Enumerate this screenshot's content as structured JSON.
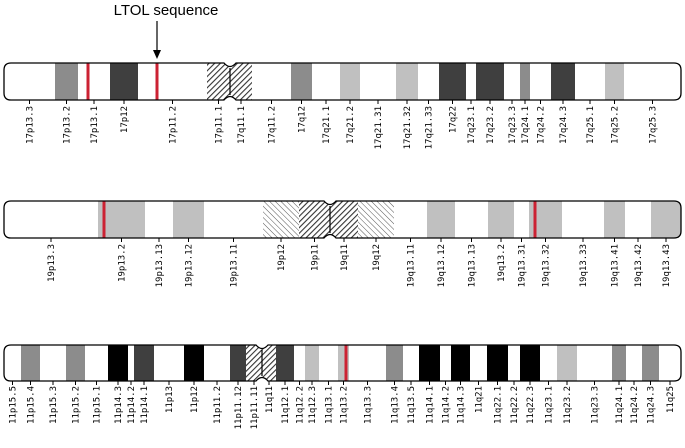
{
  "annotation": {
    "label": "LTOL sequence"
  },
  "colors": {
    "gneg": "#ffffff",
    "gpos25": "#c0c0c0",
    "gpos50": "#8c8c8c",
    "gpos75": "#3f3f3f",
    "gpos100": "#000000",
    "marker": "#cc2233",
    "outline": "#000000"
  },
  "chromosomes": [
    {
      "id": "chr17",
      "bands": [
        {
          "name": "17p13.3",
          "stain": "gneg"
        },
        {
          "name": "17p13.2",
          "stain": "gpos50"
        },
        {
          "name": "17p13.1",
          "stain": "gneg"
        },
        {
          "name": "17p12",
          "stain": "gpos75"
        },
        {
          "name": "17p11.2",
          "stain": "gneg"
        },
        {
          "name": "17p11.1",
          "stain": "acen"
        },
        {
          "name": "17q11.1",
          "stain": "acen"
        },
        {
          "name": "17q11.2",
          "stain": "gneg"
        },
        {
          "name": "17q12",
          "stain": "gpos50"
        },
        {
          "name": "17q21.1",
          "stain": "gneg"
        },
        {
          "name": "17q21.2",
          "stain": "gpos25"
        },
        {
          "name": "17q21.31",
          "stain": "gneg"
        },
        {
          "name": "17q21.32",
          "stain": "gpos25"
        },
        {
          "name": "17q21.33",
          "stain": "gneg"
        },
        {
          "name": "17q22",
          "stain": "gpos75"
        },
        {
          "name": "17q23.1",
          "stain": "gneg"
        },
        {
          "name": "17q23.2",
          "stain": "gpos75"
        },
        {
          "name": "17q23.3",
          "stain": "gneg"
        },
        {
          "name": "17q24.1",
          "stain": "gpos50"
        },
        {
          "name": "17q24.2",
          "stain": "gneg"
        },
        {
          "name": "17q24.3",
          "stain": "gpos75"
        },
        {
          "name": "17q25.1",
          "stain": "gneg"
        },
        {
          "name": "17q25.2",
          "stain": "gpos25"
        },
        {
          "name": "17q25.3",
          "stain": "gneg"
        }
      ],
      "markers": [
        "17p13.1",
        "17p11.2"
      ],
      "annotated_band": "17p11.2"
    },
    {
      "id": "chr19",
      "bands": [
        {
          "name": "19p13.3",
          "stain": "gneg"
        },
        {
          "name": "19p13.2",
          "stain": "gpos25"
        },
        {
          "name": "19p13.13",
          "stain": "gneg"
        },
        {
          "name": "19p13.12",
          "stain": "gpos25"
        },
        {
          "name": "19p13.11",
          "stain": "gneg"
        },
        {
          "name": "19p12",
          "stain": "gvar"
        },
        {
          "name": "19p11",
          "stain": "acen"
        },
        {
          "name": "19q11",
          "stain": "acen"
        },
        {
          "name": "19q12",
          "stain": "gvar"
        },
        {
          "name": "19q13.11",
          "stain": "gneg"
        },
        {
          "name": "19q13.12",
          "stain": "gpos25"
        },
        {
          "name": "19q13.13",
          "stain": "gneg"
        },
        {
          "name": "19q13.2",
          "stain": "gpos25"
        },
        {
          "name": "19q13.31",
          "stain": "gneg"
        },
        {
          "name": "19q13.32",
          "stain": "gpos25"
        },
        {
          "name": "19q13.33",
          "stain": "gneg"
        },
        {
          "name": "19q13.41",
          "stain": "gpos25"
        },
        {
          "name": "19q13.42",
          "stain": "gneg"
        },
        {
          "name": "19q13.43",
          "stain": "gpos25"
        }
      ],
      "markers": [
        "19p13.2",
        "19q13.32"
      ]
    },
    {
      "id": "chr11",
      "bands": [
        {
          "name": "11p15.5",
          "stain": "gneg"
        },
        {
          "name": "11p15.4",
          "stain": "gpos50"
        },
        {
          "name": "11p15.3",
          "stain": "gneg"
        },
        {
          "name": "11p15.2",
          "stain": "gpos50"
        },
        {
          "name": "11p15.1",
          "stain": "gneg"
        },
        {
          "name": "11p14.3",
          "stain": "gpos100"
        },
        {
          "name": "11p14.2",
          "stain": "gneg"
        },
        {
          "name": "11p14.1",
          "stain": "gpos75"
        },
        {
          "name": "11p13",
          "stain": "gneg"
        },
        {
          "name": "11p12",
          "stain": "gpos100"
        },
        {
          "name": "11p11.2",
          "stain": "gneg"
        },
        {
          "name": "11p11.12",
          "stain": "gpos75"
        },
        {
          "name": "11p11.11",
          "stain": "acen"
        },
        {
          "name": "11q11",
          "stain": "acen"
        },
        {
          "name": "11q12.1",
          "stain": "gpos75"
        },
        {
          "name": "11q12.2",
          "stain": "gneg"
        },
        {
          "name": "11q12.3",
          "stain": "gpos25"
        },
        {
          "name": "11q13.1",
          "stain": "gneg"
        },
        {
          "name": "11q13.2",
          "stain": "gpos25"
        },
        {
          "name": "11q13.3",
          "stain": "gneg"
        },
        {
          "name": "11q13.4",
          "stain": "gpos50"
        },
        {
          "name": "11q13.5",
          "stain": "gneg"
        },
        {
          "name": "11q14.1",
          "stain": "gpos100"
        },
        {
          "name": "11q14.2",
          "stain": "gneg"
        },
        {
          "name": "11q14.3",
          "stain": "gpos100"
        },
        {
          "name": "11q21",
          "stain": "gneg"
        },
        {
          "name": "11q22.1",
          "stain": "gpos100"
        },
        {
          "name": "11q22.2",
          "stain": "gneg"
        },
        {
          "name": "11q22.3",
          "stain": "gpos100"
        },
        {
          "name": "11q23.1",
          "stain": "gneg"
        },
        {
          "name": "11q23.2",
          "stain": "gpos25"
        },
        {
          "name": "11q23.3",
          "stain": "gneg"
        },
        {
          "name": "11q24.1",
          "stain": "gpos50"
        },
        {
          "name": "11q24.2",
          "stain": "gneg"
        },
        {
          "name": "11q24.3",
          "stain": "gpos50"
        },
        {
          "name": "11q25",
          "stain": "gneg"
        }
      ],
      "markers": [
        "11q13.2"
      ]
    }
  ]
}
